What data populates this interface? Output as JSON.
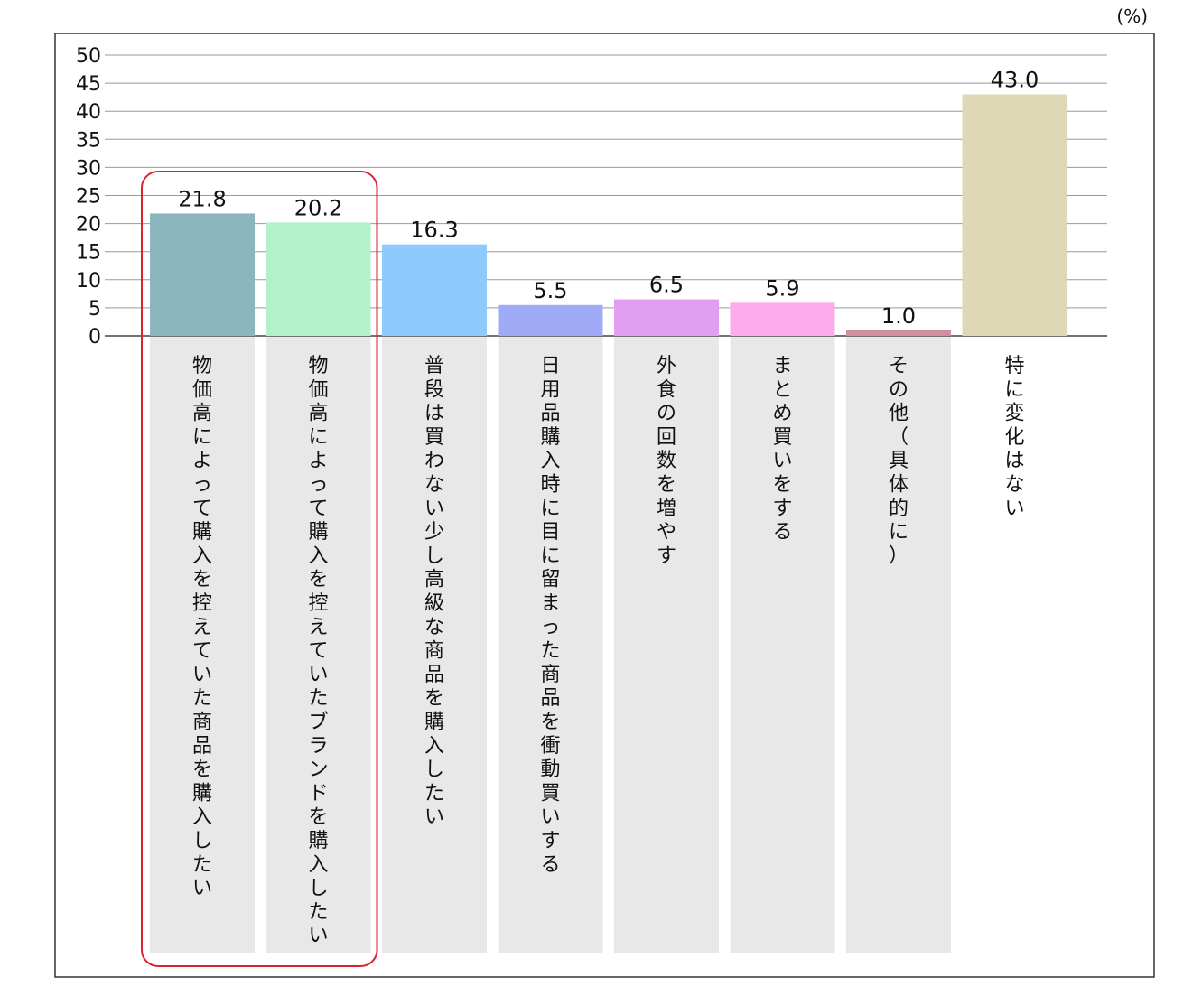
{
  "chart_data": {
    "type": "bar",
    "unit_label": "(%)",
    "categories": [
      "物価高によって購入を控えていた商品を購入したい",
      "物価高によって購入を控えていたブランドを購入したい",
      "普段は買わない少し高級な商品を購入したい",
      "日用品購入時に目に留まった商品を衝動買いする",
      "外食の回数を増やす",
      "まとめ買いをする",
      "その他（具体的に）",
      "特に変化はない"
    ],
    "values": [
      21.8,
      20.2,
      16.3,
      5.5,
      6.5,
      5.9,
      1.0,
      43.0
    ],
    "value_labels": [
      "21.8",
      "20.2",
      "16.3",
      "5.5",
      "6.5",
      "5.9",
      "1.0",
      "43.0"
    ],
    "bar_colors": [
      "#8cb6bd",
      "#b3f2c9",
      "#8fcafc",
      "#a0abf8",
      "#e29ef0",
      "#fcaceb",
      "#d08e9f",
      "#dfd8b6"
    ],
    "label_band_color": "#e8e8e8",
    "highlight_color": "#d9232f",
    "highlighted_categories": [
      0,
      1
    ],
    "y_ticks": [
      "0",
      "5",
      "10",
      "15",
      "20",
      "25",
      "30",
      "35",
      "40",
      "45",
      "50"
    ],
    "ylim": [
      0,
      50
    ],
    "grid": true,
    "legend": "none"
  }
}
